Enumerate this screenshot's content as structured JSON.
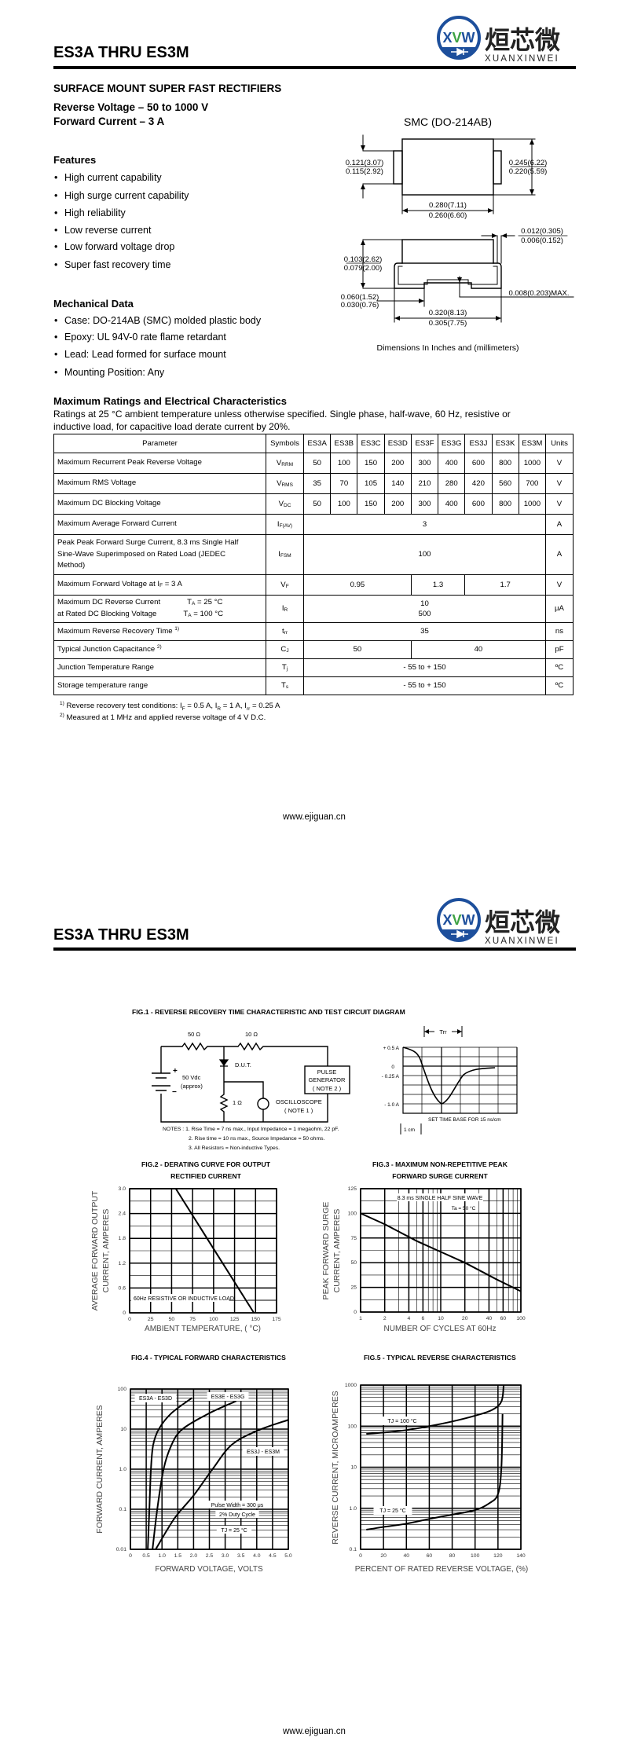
{
  "header": {
    "title": "ES3A THRU ES3M",
    "logo": {
      "mark": "XVW",
      "chinese": "烜芯微",
      "latin": "XUANXINWEI",
      "colors": {
        "blue": "#1d4f9c",
        "green": "#3da244"
      }
    }
  },
  "product": {
    "heading": "SURFACE MOUNT SUPER FAST RECTIFIERS",
    "reverse_voltage": "Reverse Voltage – 50 to 1000 V",
    "forward_current": "Forward Current – 3 A"
  },
  "features": {
    "heading": "Features",
    "items": [
      "High current capability",
      "High surge current capability",
      "High reliability",
      "Low reverse current",
      "Low forward voltage drop",
      "Super fast recovery time"
    ]
  },
  "mechanical": {
    "heading": "Mechanical Data",
    "items": [
      "Case: DO-214AB (SMC) molded plastic body",
      "Epoxy: UL 94V-0 rate flame retardant",
      "Lead: Lead formed for surface mount",
      "Mounting Position: Any"
    ]
  },
  "package": {
    "title": "SMC (DO-214AB)",
    "dims": {
      "tab_h_max": "0.121(3.07)",
      "tab_h_min": "0.115(2.92)",
      "body_w_max": "0.245(6.22)",
      "body_w_min": "0.220(5.59)",
      "body_l_max": "0.280(7.11)",
      "body_l_min": "0.260(6.60)",
      "lead_t_max": "0.012(0.305)",
      "lead_t_min": "0.006(0.152)",
      "height_max": "0.103(2.62)",
      "height_min": "0.079(2.00)",
      "foot_max": "0.060(1.52)",
      "foot_min": "0.030(0.76)",
      "standoff": "0.008(0.203)MAX.",
      "total_max": "0.320(8.13)",
      "total_min": "0.305(7.75)"
    },
    "caption": "Dimensions In Inches and (millimeters)"
  },
  "ratings": {
    "heading": "Maximum Ratings and Electrical Characteristics",
    "note_line1": "Ratings at 25 °C ambient temperature unless otherwise specified. Single phase, half-wave, 60 Hz, resistive or",
    "note_line2": "inductive load, for capacitive load derate current by 20%.",
    "columns": [
      "Parameter",
      "Symbols",
      "ES3A",
      "ES3B",
      "ES3C",
      "ES3D",
      "ES3F",
      "ES3G",
      "ES3J",
      "ES3K",
      "ES3M",
      "Units"
    ],
    "rows": [
      {
        "param": [
          [
            {
              "t": "Maximum Recurrent Peak Reverse Voltage"
            }
          ]
        ],
        "sym": "V",
        "sub": "RRM",
        "cells": [
          {
            "v": [
              "50"
            ]
          },
          {
            "v": [
              "100"
            ]
          },
          {
            "v": [
              "150"
            ]
          },
          {
            "v": [
              "200"
            ]
          },
          {
            "v": [
              "300"
            ]
          },
          {
            "v": [
              "400"
            ]
          },
          {
            "v": [
              "600"
            ]
          },
          {
            "v": [
              "800"
            ]
          },
          {
            "v": [
              "1000"
            ]
          }
        ],
        "unit": "V"
      },
      {
        "param": [
          [
            {
              "t": "Maximum RMS Voltage"
            }
          ]
        ],
        "sym": "V",
        "sub": "RMS",
        "cells": [
          {
            "v": [
              "35"
            ]
          },
          {
            "v": [
              "70"
            ]
          },
          {
            "v": [
              "105"
            ]
          },
          {
            "v": [
              "140"
            ]
          },
          {
            "v": [
              "210"
            ]
          },
          {
            "v": [
              "280"
            ]
          },
          {
            "v": [
              "420"
            ]
          },
          {
            "v": [
              "560"
            ]
          },
          {
            "v": [
              "700"
            ]
          }
        ],
        "unit": "V"
      },
      {
        "param": [
          [
            {
              "t": "Maximum DC Blocking Voltage"
            }
          ]
        ],
        "sym": "V",
        "sub": "DC",
        "cells": [
          {
            "v": [
              "50"
            ]
          },
          {
            "v": [
              "100"
            ]
          },
          {
            "v": [
              "150"
            ]
          },
          {
            "v": [
              "200"
            ]
          },
          {
            "v": [
              "300"
            ]
          },
          {
            "v": [
              "400"
            ]
          },
          {
            "v": [
              "600"
            ]
          },
          {
            "v": [
              "800"
            ]
          },
          {
            "v": [
              "1000"
            ]
          }
        ],
        "unit": "V"
      },
      {
        "param": [
          [
            {
              "t": "Maximum Average Forward Current"
            }
          ]
        ],
        "sym": "I",
        "sub": "F(AV)",
        "cells": [
          {
            "v": [
              "3"
            ],
            "span": 9
          }
        ],
        "unit": "A"
      },
      {
        "param": [
          [
            {
              "t": "Peak Peak Forward Surge Current, 8.3 ms Single Half"
            }
          ],
          [
            {
              "t": "Sine-Wave Superimposed on Rated Load (JEDEC"
            }
          ],
          [
            {
              "t": "Method)"
            }
          ]
        ],
        "sym": "I",
        "sub": "FSM",
        "cells": [
          {
            "v": [
              "100"
            ],
            "span": 9
          }
        ],
        "unit": "A"
      },
      {
        "param": [
          [
            {
              "t": "Maximum Forward Voltage at I"
            },
            {
              "sub": "F"
            },
            {
              "t": " = 3 A"
            }
          ]
        ],
        "sym": "V",
        "sub": "F",
        "cells": [
          {
            "v": [
              "0.95"
            ],
            "span": 4
          },
          {
            "v": [
              "1.3"
            ],
            "span": 2
          },
          {
            "v": [
              "1.7"
            ],
            "span": 3
          }
        ],
        "unit": "V"
      },
      {
        "param": [
          [
            {
              "t": "Maximum DC Reverse Current"
            },
            {
              "gap": true
            },
            {
              "t": "T"
            },
            {
              "sub": "A"
            },
            {
              "t": " = 25 °C"
            }
          ],
          [
            {
              "t": "at Rated DC Blocking Voltage"
            },
            {
              "gap": true
            },
            {
              "t": "T"
            },
            {
              "sub": "A"
            },
            {
              "t": " = 100 °C"
            }
          ]
        ],
        "sym": "I",
        "sub": "R",
        "cells": [
          {
            "v": [
              "10",
              "500"
            ],
            "span": 9
          }
        ],
        "unit": "μA"
      },
      {
        "param": [
          [
            {
              "t": "Maximum Reverse Recovery Time "
            },
            {
              "sup": "1)"
            }
          ]
        ],
        "sym": "t",
        "sub": "rr",
        "cells": [
          {
            "v": [
              "35"
            ],
            "span": 9
          }
        ],
        "unit": "ns"
      },
      {
        "param": [
          [
            {
              "t": "Typical Junction Capacitance "
            },
            {
              "sup": "2)"
            }
          ]
        ],
        "sym": "C",
        "sub": "J",
        "cells": [
          {
            "v": [
              "50"
            ],
            "span": 4
          },
          {
            "v": [
              "40"
            ],
            "span": 5
          }
        ],
        "unit": "pF"
      },
      {
        "param": [
          [
            {
              "t": "Junction Temperature Range"
            }
          ]
        ],
        "sym": "T",
        "sub": "j",
        "cells": [
          {
            "v": [
              "- 55 to + 150"
            ],
            "span": 9
          }
        ],
        "unit": "ºC"
      },
      {
        "param": [
          [
            {
              "t": "Storage temperature range"
            }
          ]
        ],
        "sym": "T",
        "sub": "s",
        "cells": [
          {
            "v": [
              "- 55 to + 150"
            ],
            "span": 9
          }
        ],
        "unit": "ºC"
      }
    ],
    "footnotes": [
      [
        {
          "sup": "1)"
        },
        {
          "t": " Reverse recovery test conditions: I"
        },
        {
          "sub": "F"
        },
        {
          "t": " = 0.5 A, I"
        },
        {
          "sub": "R"
        },
        {
          "t": " = 1 A, I"
        },
        {
          "sub": "rr"
        },
        {
          "t": " = 0.25 A"
        }
      ],
      [
        {
          "sup": "2)"
        },
        {
          "t": " Measured at 1 MHz and applied reverse voltage of 4 V D.C."
        }
      ]
    ]
  },
  "footer": {
    "url": "www.ejiguan.cn"
  },
  "fig1": {
    "title": "FIG.1 - REVERSE RECOVERY TIME CHARACTERISTIC AND TEST CIRCUIT DIAGRAM",
    "r1": "50 Ω",
    "r2": "10 Ω",
    "r3": "1 Ω",
    "dut": "D.U.T.",
    "source": "50 Vdc",
    "source_note": "(approx)",
    "plus": "+",
    "minus": "−",
    "pulse": [
      "PULSE",
      "GENERATOR",
      "( NOTE 2 )"
    ],
    "scope": [
      "OSCILLOSCOPE",
      "( NOTE 1 )"
    ],
    "notes": [
      "NOTES :  1. Rise Time = 7 ns max., Input Impedance = 1 megaohm, 22 pF.",
      "2. Rise time = 10 ns max., Source Impedance = 50 ohms.",
      "3. All Resistors = Non-inductive Types."
    ],
    "wave_labels": [
      "+ 0.5 A",
      "0",
      "- 0.25 A",
      "- 1.0 A"
    ],
    "trr": "Trr",
    "timebase": "SET TIME BASE FOR  15 ns/cm",
    "scale": "1 cm"
  },
  "chart_data": [
    {
      "title": [
        "FIG.2 - DERATING CURVE FOR OUTPUT",
        "RECTIFIED CURRENT"
      ],
      "type": "line",
      "xlabel": "AMBIENT TEMPERATURE, ( °C)",
      "ylabel": [
        "AVERAGE FORWARD OUTPUT",
        "CURRENT, AMPERES"
      ],
      "xlim": [
        0,
        175
      ],
      "ylim": [
        0,
        3.0
      ],
      "xscale": "linear",
      "yscale": "linear",
      "grid": true,
      "xticks": [
        "0",
        "25",
        "50",
        "75",
        "100",
        "125",
        "150",
        "175"
      ],
      "yticks": [
        "0",
        "0.6",
        "1.2",
        "1.8",
        "2.4",
        "3.0"
      ],
      "series": [
        {
          "points": [
            [
              0,
              3.0
            ],
            [
              55,
              3.0
            ],
            [
              148,
              0
            ]
          ]
        }
      ],
      "annotations": [
        "60Hz RESISTIVE OR INDUCTIVE LOAD"
      ]
    },
    {
      "title": [
        "FIG.3 - MAXIMUM NON-REPETITIVE PEAK",
        "FORWARD SURGE CURRENT"
      ],
      "type": "line",
      "xlabel": "NUMBER OF CYCLES AT 60Hz",
      "ylabel": [
        "PEAK FORWARD SURGE",
        "CURRENT, AMPERES"
      ],
      "xlim": [
        1,
        100
      ],
      "ylim": [
        0,
        125
      ],
      "xscale": "log",
      "yscale": "linear",
      "grid": true,
      "xticks": [
        "1",
        "2",
        "4",
        "6",
        "10",
        "20",
        "40",
        "60",
        "100"
      ],
      "yticks": [
        "0",
        "25",
        "50",
        "75",
        "100",
        "125"
      ],
      "series": [
        {
          "points": [
            [
              1,
              100
            ],
            [
              2,
              89
            ],
            [
              5,
              72
            ],
            [
              10,
              61
            ],
            [
              20,
              50
            ],
            [
              50,
              33
            ],
            [
              100,
              21
            ]
          ]
        }
      ],
      "annotations": [
        "8.3 ms SINGLE HALF SINE WAVE",
        "Ta = 50 °C"
      ]
    },
    {
      "title": [
        "FIG.4 - TYPICAL FORWARD  CHARACTERISTICS"
      ],
      "type": "line",
      "xlabel": "FORWARD VOLTAGE, VOLTS",
      "ylabel": [
        "FORWARD CURRENT, AMPERES"
      ],
      "xlim": [
        0,
        5.0
      ],
      "ylim": [
        0.01,
        100
      ],
      "xscale": "linear",
      "yscale": "log",
      "grid": true,
      "xticks": [
        "0",
        "0.5",
        "1.0",
        "1.5",
        "2.0",
        "2.5",
        "3.0",
        "3.5",
        "4.0",
        "4.5",
        "5.0"
      ],
      "yticks": [
        "0.01",
        "0.1",
        "1.0",
        "10",
        "100"
      ],
      "series": [
        {
          "name": "ES3A - ES3D",
          "points": [
            [
              0.55,
              0.01
            ],
            [
              0.6,
              0.1
            ],
            [
              0.65,
              1
            ],
            [
              0.72,
              4
            ],
            [
              0.9,
              10
            ],
            [
              1.3,
              25
            ],
            [
              1.95,
              60
            ]
          ]
        },
        {
          "name": "ES3E - ES3G",
          "points": [
            [
              0.7,
              0.01
            ],
            [
              0.85,
              0.1
            ],
            [
              1.05,
              1
            ],
            [
              1.3,
              4
            ],
            [
              1.65,
              10
            ],
            [
              2.5,
              25
            ],
            [
              3.35,
              50
            ]
          ]
        },
        {
          "name": "ES3J - ES3M",
          "points": [
            [
              0.8,
              0.01
            ],
            [
              1.4,
              0.06
            ],
            [
              2.0,
              0.22
            ],
            [
              2.6,
              1.0
            ],
            [
              3.2,
              4
            ],
            [
              4.0,
              9
            ],
            [
              5.0,
              17
            ]
          ]
        }
      ],
      "annotations": [
        "Pulse Width = 300  μs",
        "2% Duty Cycle",
        "TJ = 25 °C"
      ]
    },
    {
      "title": [
        "FIG.5 - TYPICAL REVERSE CHARACTERISTICS"
      ],
      "type": "line",
      "xlabel": "PERCENT OF RATED REVERSE VOLTAGE, (%)",
      "ylabel": [
        "REVERSE CURRENT, MICROAMPERES"
      ],
      "xlim": [
        0,
        140
      ],
      "ylim": [
        0.1,
        1000
      ],
      "xscale": "linear",
      "yscale": "log",
      "grid": true,
      "xticks": [
        "0",
        "20",
        "40",
        "60",
        "80",
        "100",
        "120",
        "140"
      ],
      "yticks": [
        "0.1",
        "1.0",
        "10",
        "100",
        "1000"
      ],
      "series": [
        {
          "name": "TJ = 100 °C",
          "points": [
            [
              5,
              65
            ],
            [
              20,
              70
            ],
            [
              40,
              80
            ],
            [
              60,
              100
            ],
            [
              80,
              130
            ],
            [
              100,
              180
            ],
            [
              115,
              250
            ],
            [
              123,
              400
            ],
            [
              125,
              1000
            ]
          ]
        },
        {
          "name": "TJ = 25 °C",
          "points": [
            [
              5,
              0.3
            ],
            [
              20,
              0.35
            ],
            [
              40,
              0.42
            ],
            [
              60,
              0.55
            ],
            [
              80,
              0.7
            ],
            [
              100,
              0.9
            ],
            [
              112,
              1.3
            ],
            [
              120,
              2.2
            ],
            [
              123,
              10
            ],
            [
              124,
              200
            ]
          ]
        }
      ],
      "annotations": []
    }
  ]
}
